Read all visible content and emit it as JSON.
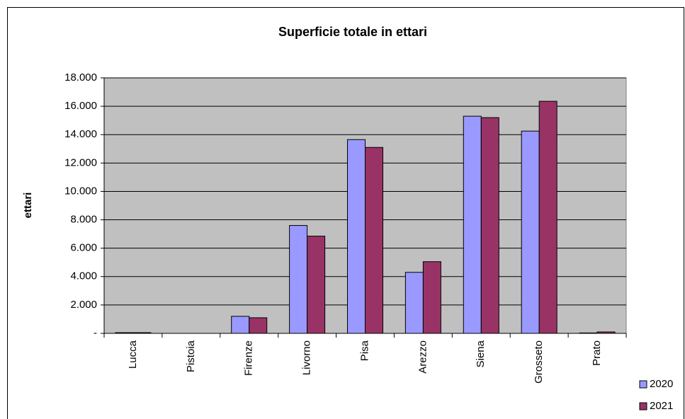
{
  "chart_data": {
    "type": "bar",
    "title": "Superficie totale in ettari",
    "y_label": "ettari",
    "categories": [
      "Lucca",
      "Pistoia",
      "Firenze",
      "Livorno",
      "Pisa",
      "Arezzo",
      "Siena",
      "Grosseto",
      "Prato"
    ],
    "series": [
      {
        "name": "2020",
        "color": "#9999ff",
        "values": [
          50,
          0,
          1200,
          7600,
          13650,
          4300,
          15300,
          14250,
          30
        ]
      },
      {
        "name": "2021",
        "color": "#993366",
        "values": [
          50,
          0,
          1100,
          6850,
          13100,
          5050,
          15200,
          16350,
          100
        ]
      }
    ],
    "ylim": [
      0,
      18000
    ],
    "yticks": [
      {
        "value": 0,
        "label": "-"
      },
      {
        "value": 2000,
        "label": "2.000"
      },
      {
        "value": 4000,
        "label": "4.000"
      },
      {
        "value": 6000,
        "label": "6.000"
      },
      {
        "value": 8000,
        "label": "8.000"
      },
      {
        "value": 10000,
        "label": "10.000"
      },
      {
        "value": 12000,
        "label": "12.000"
      },
      {
        "value": 14000,
        "label": "14.000"
      },
      {
        "value": 16000,
        "label": "16.000"
      },
      {
        "value": 18000,
        "label": "18.000"
      }
    ],
    "grid": true,
    "legend": "right"
  }
}
